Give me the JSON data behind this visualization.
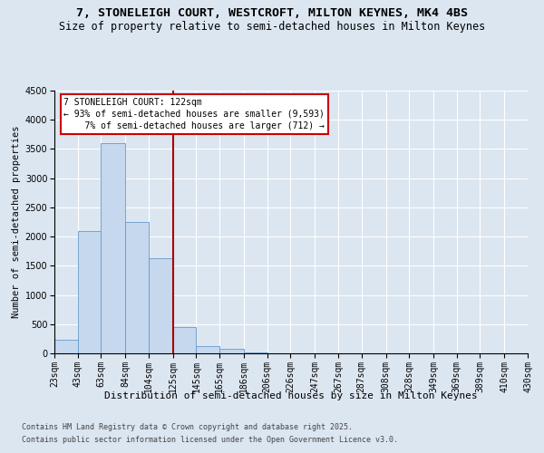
{
  "title1": "7, STONELEIGH COURT, WESTCROFT, MILTON KEYNES, MK4 4BS",
  "title2": "Size of property relative to semi-detached houses in Milton Keynes",
  "xlabel": "Distribution of semi-detached houses by size in Milton Keynes",
  "ylabel": "Number of semi-detached properties",
  "bins": [
    23,
    43,
    63,
    84,
    104,
    125,
    145,
    165,
    186,
    206,
    226,
    247,
    267,
    287,
    308,
    328,
    349,
    369,
    389,
    410,
    430
  ],
  "bin_labels": [
    "23sqm",
    "43sqm",
    "63sqm",
    "84sqm",
    "104sqm",
    "125sqm",
    "145sqm",
    "165sqm",
    "186sqm",
    "206sqm",
    "226sqm",
    "247sqm",
    "267sqm",
    "287sqm",
    "308sqm",
    "328sqm",
    "349sqm",
    "369sqm",
    "389sqm",
    "410sqm",
    "430sqm"
  ],
  "values": [
    230,
    2100,
    3600,
    2250,
    1630,
    450,
    120,
    80,
    10,
    5,
    2,
    1,
    1,
    0,
    0,
    0,
    0,
    0,
    0,
    0
  ],
  "bar_color": "#c5d8ee",
  "bar_edge_color": "#6699cc",
  "vline_x": 125,
  "vline_color": "#aa0000",
  "annotation_title": "7 STONELEIGH COURT: 122sqm",
  "annotation_line1": "← 93% of semi-detached houses are smaller (9,593)",
  "annotation_line2": "7% of semi-detached houses are larger (712) →",
  "annotation_box_color": "#cc0000",
  "ylim": [
    0,
    4500
  ],
  "yticks": [
    0,
    500,
    1000,
    1500,
    2000,
    2500,
    3000,
    3500,
    4000,
    4500
  ],
  "bg_color": "#dce6f1",
  "plot_bg_color": "#dce6f1",
  "footer1": "Contains HM Land Registry data © Crown copyright and database right 2025.",
  "footer2": "Contains public sector information licensed under the Open Government Licence v3.0.",
  "title1_fontsize": 9.5,
  "title2_fontsize": 8.5,
  "xlabel_fontsize": 8,
  "ylabel_fontsize": 7.5,
  "tick_fontsize": 7,
  "footer_fontsize": 6,
  "annot_fontsize": 7
}
